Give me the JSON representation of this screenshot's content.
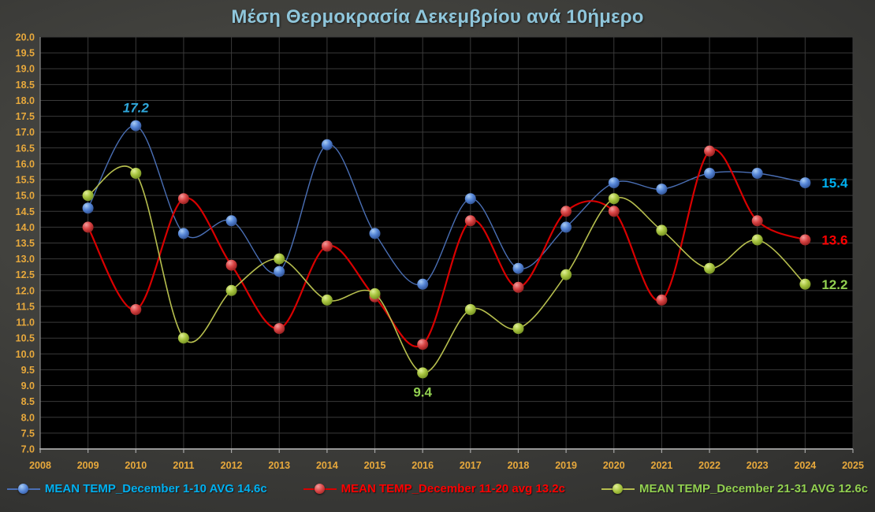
{
  "chart_data": {
    "type": "line",
    "title": "Μέση Θερμοκρασία Δεκεμβρίου ανά 10ήμερο",
    "title_color": "#8FC6DB",
    "axis_label_color": "#E8A93C",
    "plot_bg": "#000000",
    "grid": true,
    "gridline_color": "#3A3A3A",
    "legend_position": "bottom",
    "xlim": [
      2008,
      2025
    ],
    "ylim": [
      7.0,
      20.0
    ],
    "y_step": 0.5,
    "x": [
      2009,
      2010,
      2011,
      2012,
      2013,
      2014,
      2015,
      2016,
      2017,
      2018,
      2019,
      2020,
      2021,
      2022,
      2023,
      2024
    ],
    "x_ticks": [
      "2008",
      "2009",
      "2010",
      "2011",
      "2012",
      "2013",
      "2014",
      "2015",
      "2016",
      "2017",
      "2018",
      "2019",
      "2020",
      "2021",
      "2022",
      "2023",
      "2024",
      "2025"
    ],
    "y_ticks": [
      "20.0",
      "19.5",
      "19.0",
      "18.5",
      "18.0",
      "17.5",
      "17.0",
      "16.5",
      "16.0",
      "15.5",
      "15.0",
      "14.5",
      "14.0",
      "13.5",
      "13.0",
      "12.5",
      "12.0",
      "11.5",
      "11.0",
      "10.5",
      "10.0",
      "9.5",
      "9.0",
      "8.5",
      "8.0",
      "7.5",
      "7.0"
    ],
    "series": [
      {
        "name": "MEAN TEMP_December 1-10 AVG 14.6c",
        "text_color": "#00B0F0",
        "line_color": "#4A6FB5",
        "marker_colors": [
          "#AACDF4",
          "#5585D6",
          "#2C4C8C"
        ],
        "values": [
          14.6,
          17.2,
          13.8,
          14.2,
          12.6,
          16.6,
          13.8,
          12.2,
          14.9,
          12.7,
          14.0,
          15.4,
          15.2,
          15.7,
          15.7,
          15.4
        ]
      },
      {
        "name": "MEAN TEMP_December 11-20 avg 13.2c",
        "text_color": "#FF0000",
        "line_color": "#D90000",
        "marker_colors": [
          "#F49C9C",
          "#D84444",
          "#8C1A1A"
        ],
        "values": [
          14.0,
          11.4,
          14.9,
          12.8,
          10.8,
          13.4,
          11.8,
          10.3,
          14.2,
          12.1,
          14.5,
          14.5,
          11.7,
          16.4,
          14.2,
          13.6
        ]
      },
      {
        "name": "MEAN TEMP_December 21-31 AVG 12.6c",
        "text_color": "#92D050",
        "line_color": "#B6BE4E",
        "marker_colors": [
          "#E2F098",
          "#A8C440",
          "#6E8A1E"
        ],
        "values": [
          15.0,
          15.7,
          10.5,
          12.0,
          13.0,
          11.7,
          11.9,
          9.4,
          11.4,
          10.8,
          12.5,
          14.9,
          13.9,
          12.7,
          13.6,
          12.2
        ]
      }
    ],
    "annotations": [
      {
        "series": 0,
        "year": 2010,
        "label": "17.2",
        "position": "above",
        "italic": true,
        "color": "#2FA8DC"
      },
      {
        "series": 0,
        "year": 2024,
        "label": "15.4",
        "position": "right",
        "italic": false,
        "color": "#00B0F0"
      },
      {
        "series": 1,
        "year": 2024,
        "label": "13.6",
        "position": "right",
        "italic": false,
        "color": "#FF0000"
      },
      {
        "series": 2,
        "year": 2024,
        "label": "12.2",
        "position": "right",
        "italic": false,
        "color": "#92D050"
      },
      {
        "series": 2,
        "year": 2016,
        "label": "9.4",
        "position": "below",
        "italic": false,
        "color": "#92D050"
      }
    ]
  }
}
